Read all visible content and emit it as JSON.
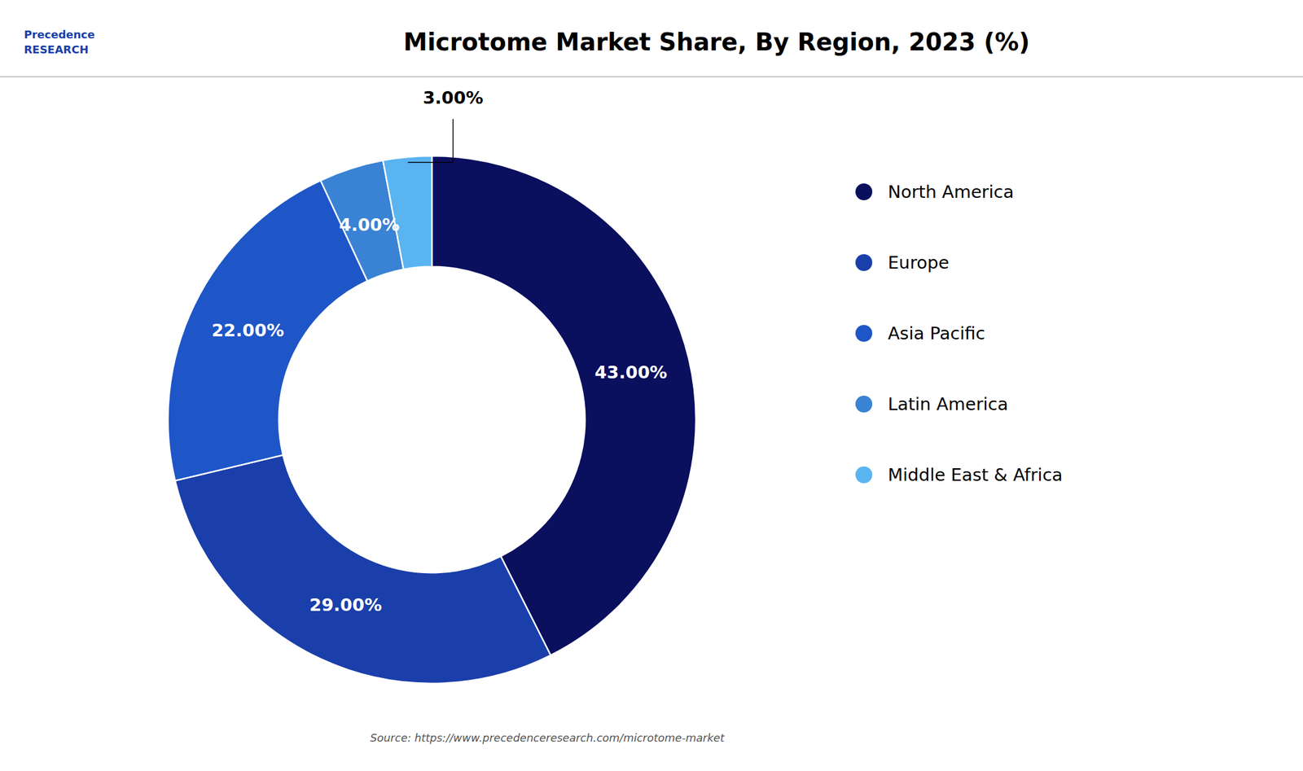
{
  "chart_data": {
    "type": "pie",
    "title": "Microtome Market Share, By Region, 2023 (%)",
    "categories": [
      "North America",
      "Europe",
      "Asia Pacific",
      "Latin America",
      "Middle East & Africa"
    ],
    "values": [
      43.0,
      29.0,
      22.0,
      4.0,
      3.0
    ],
    "value_labels": [
      "43.00%",
      "29.00%",
      "22.00%",
      "4.00%",
      "3.00%"
    ],
    "colors": [
      "#0a0f5e",
      "#1a3faa",
      "#1e56c8",
      "#3a82d4",
      "#5ab4f0"
    ],
    "data_labels": true,
    "legend": "right",
    "annotations": [
      "Source: https://www.precedenceresearch.com/microtome-market",
      "Precedence\nRESEARCH"
    ]
  }
}
